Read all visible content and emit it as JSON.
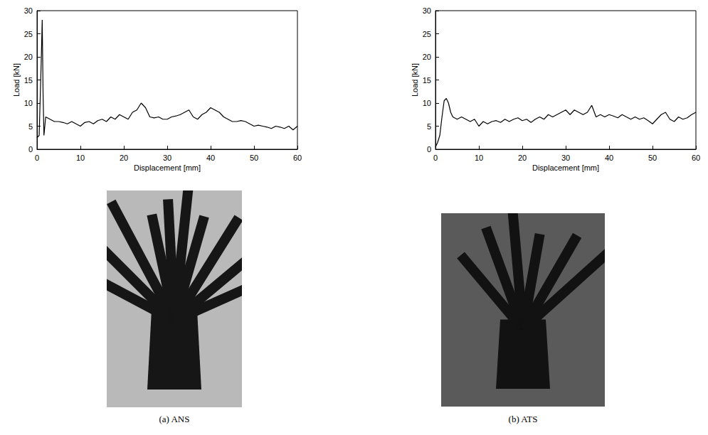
{
  "chart_data": [
    {
      "type": "line",
      "title": "(a) ANS",
      "xlabel": "Displacement [mm]",
      "ylabel": "Load [kN]",
      "x": [
        0,
        0.5,
        1,
        1.2,
        1.4,
        1.6,
        2,
        3,
        4,
        5,
        6,
        7,
        8,
        9,
        10,
        11,
        12,
        13,
        14,
        15,
        16,
        17,
        18,
        19,
        20,
        21,
        22,
        23,
        24,
        25,
        26,
        27,
        28,
        29,
        30,
        31,
        32,
        33,
        34,
        35,
        36,
        37,
        38,
        39,
        40,
        41,
        42,
        43,
        44,
        45,
        46,
        47,
        48,
        49,
        50,
        51,
        52,
        53,
        54,
        55,
        56,
        57,
        58,
        59,
        60
      ],
      "values": [
        2.5,
        3,
        20,
        28,
        12,
        3,
        7,
        6.5,
        6,
        6,
        5.8,
        5.5,
        6,
        5.5,
        5,
        5.8,
        6,
        5.5,
        6.2,
        6.5,
        6,
        7,
        6.5,
        7.5,
        7,
        6.5,
        8,
        8.5,
        10,
        9,
        7,
        6.8,
        7,
        6.5,
        6.5,
        7,
        7.2,
        7.5,
        8,
        8.5,
        7,
        6.5,
        7.5,
        8,
        9,
        8.5,
        8,
        7,
        6.5,
        6,
        6,
        6.2,
        6,
        5.5,
        5,
        5.2,
        5,
        4.8,
        4.5,
        5,
        4.8,
        4.5,
        5,
        4.2,
        5
      ],
      "color": "#000000",
      "xlim": [
        0,
        60
      ],
      "xticks": [
        0,
        10,
        20,
        30,
        40,
        50,
        60
      ],
      "ylim": [
        0,
        30
      ],
      "yticks": [
        0,
        5,
        10,
        15,
        20,
        25,
        30
      ],
      "grid": false
    },
    {
      "type": "line",
      "title": "(b) ATS",
      "xlabel": "Displacement [mm]",
      "ylabel": "Load [kN]",
      "x": [
        0,
        0.5,
        1,
        1.5,
        2,
        2.5,
        3,
        3.5,
        4,
        5,
        6,
        7,
        8,
        9,
        10,
        11,
        12,
        13,
        14,
        15,
        16,
        17,
        18,
        19,
        20,
        21,
        22,
        23,
        24,
        25,
        26,
        27,
        28,
        29,
        30,
        31,
        32,
        33,
        34,
        35,
        36,
        37,
        38,
        39,
        40,
        41,
        42,
        43,
        44,
        45,
        46,
        47,
        48,
        49,
        50,
        51,
        52,
        53,
        54,
        55,
        56,
        57,
        58,
        59,
        60
      ],
      "values": [
        0.5,
        1.5,
        3,
        7,
        10.5,
        11,
        10,
        8,
        7,
        6.5,
        7,
        6.5,
        6,
        6.5,
        5,
        6,
        5.5,
        6,
        6.2,
        5.8,
        6.5,
        6,
        6.5,
        6.8,
        6.2,
        6.5,
        5.8,
        6.5,
        7,
        6.5,
        7.5,
        7,
        7.5,
        8,
        8.5,
        7.5,
        8.5,
        8,
        7.5,
        8,
        9.5,
        7,
        7.5,
        7,
        7.5,
        7.2,
        6.8,
        7.5,
        7,
        6.5,
        7,
        6.5,
        6.8,
        6.2,
        5.5,
        6.5,
        7.5,
        8,
        6.5,
        6,
        7,
        6.5,
        6.8,
        7.5,
        8
      ],
      "color": "#000000",
      "xlim": [
        0,
        60
      ],
      "xticks": [
        0,
        10,
        20,
        30,
        40,
        50,
        60
      ],
      "ylim": [
        0,
        30
      ],
      "yticks": [
        0,
        5,
        10,
        15,
        20,
        25,
        30
      ],
      "grid": false
    }
  ]
}
